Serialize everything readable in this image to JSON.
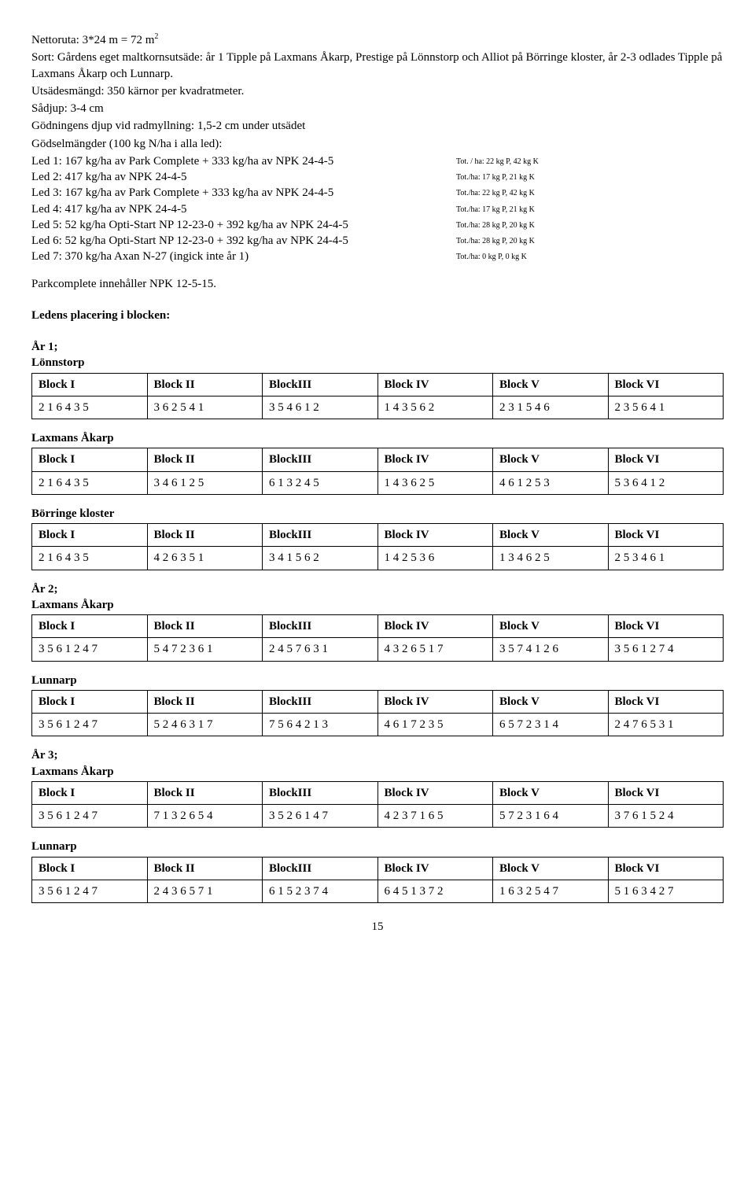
{
  "intro": {
    "l1_pre": "Nettoruta: 3*24 m = 72 m",
    "l1_sup": "2",
    "l2": "Sort: Gårdens eget maltkornsutsäde: år 1 Tipple på Laxmans Åkarp, Prestige på Lönnstorp och Alliot på Börringe kloster, år 2-3 odlades Tipple på Laxmans Åkarp och Lunnarp.",
    "l3": "Utsädesmängd: 350 kärnor per kvadratmeter.",
    "l4": "Sådjup: 3-4 cm",
    "l5": "Gödningens djup vid radmyllning: 1,5-2 cm under utsädet",
    "l6": "Gödselmängder (100 kg N/ha i alla led):"
  },
  "leds": [
    {
      "label": "Led 1: 167 kg/ha av Park Complete + 333 kg/ha av NPK 24-4-5",
      "note": "Tot. / ha: 22 kg P, 42 kg K"
    },
    {
      "label": "Led 2: 417 kg/ha av NPK 24-4-5",
      "note": "Tot./ha: 17 kg P, 21 kg K"
    },
    {
      "label": "Led 3: 167 kg/ha av Park Complete + 333 kg/ha av NPK 24-4-5",
      "note": "Tot./ha:  22 kg P, 42 kg K"
    },
    {
      "label": "Led 4: 417 kg/ha av NPK 24-4-5",
      "note": "Tot./ha: 17 kg P, 21 kg K"
    },
    {
      "label": "Led 5: 52 kg/ha Opti-Start NP 12-23-0 + 392 kg/ha av NPK 24-4-5",
      "note": "Tot./ha: 28 kg P, 20 kg K"
    },
    {
      "label": "Led 6: 52 kg/ha Opti-Start NP 12-23-0 + 392 kg/ha av NPK 24-4-5",
      "note": "Tot./ha: 28 kg P, 20 kg K"
    },
    {
      "label": "Led 7: 370 kg/ha Axan N-27 (ingick inte år 1)",
      "note": "Tot./ha: 0 kg P, 0 kg K"
    }
  ],
  "park_line": "Parkcomplete innehåller NPK 12-5-15.",
  "placement_heading": "Ledens placering i blocken:",
  "headers6": [
    "Block I",
    "Block II",
    "BlockIII",
    "Block IV",
    "Block V",
    "Block VI"
  ],
  "year1": {
    "title": "År 1;",
    "tables": [
      {
        "name": "Lönnstorp",
        "row": [
          "2 1 6 4 3 5",
          "3 6 2 5 4 1",
          "3 5 4 6 1 2",
          "1 4 3 5 6 2",
          "2 3 1 5 4 6",
          "2 3 5 6 4 1"
        ]
      },
      {
        "name": "Laxmans Åkarp",
        "row": [
          "2 1 6 4 3 5",
          "3 4 6 1 2 5",
          "6 1 3 2 4 5",
          "1 4 3 6 2 5",
          "4 6 1 2 5 3",
          "5 3 6 4 1 2"
        ]
      },
      {
        "name": "Börringe kloster",
        "row": [
          "2 1 6 4 3 5",
          "4 2 6 3 5 1",
          "3 4 1 5 6 2",
          "1 4 2 5 3 6",
          "1 3 4 6 2 5",
          "2 5 3 4 6 1"
        ]
      }
    ]
  },
  "year2": {
    "title": "År 2;",
    "tables": [
      {
        "name": "Laxmans Åkarp",
        "row": [
          "3 5 6 1 2 4 7",
          "5 4 7 2 3 6 1",
          "2 4 5 7 6 3 1",
          "4 3 2 6 5 1 7",
          "3 5 7 4 1 2 6",
          "3 5 6 1 2 7 4"
        ]
      },
      {
        "name": "Lunnarp",
        "row": [
          "3 5 6 1 2 4 7",
          "5 2 4 6 3 1 7",
          "7 5 6 4 2 1 3",
          "4 6 1 7 2 3 5",
          "6 5 7 2 3 1 4",
          "2 4 7 6 5 3 1"
        ]
      }
    ]
  },
  "year3": {
    "title": "År 3;",
    "tables": [
      {
        "name": "Laxmans Åkarp",
        "row": [
          "3 5 6 1 2 4 7",
          "7 1 3 2 6 5 4",
          "3 5 2 6 1 4 7",
          "4 2 3 7 1 6 5",
          "5 7 2 3 1 6 4",
          "3 7 6 1 5 2 4"
        ]
      },
      {
        "name": "Lunnarp",
        "row": [
          "3 5 6 1 2 4 7",
          "2 4 3 6 5 7 1",
          "6 1 5 2 3 7 4",
          "6 4 5 1 3 7 2",
          "1 6 3 2 5 4 7",
          "5 1 6 3 4 2 7"
        ]
      }
    ]
  },
  "page_number": "15"
}
